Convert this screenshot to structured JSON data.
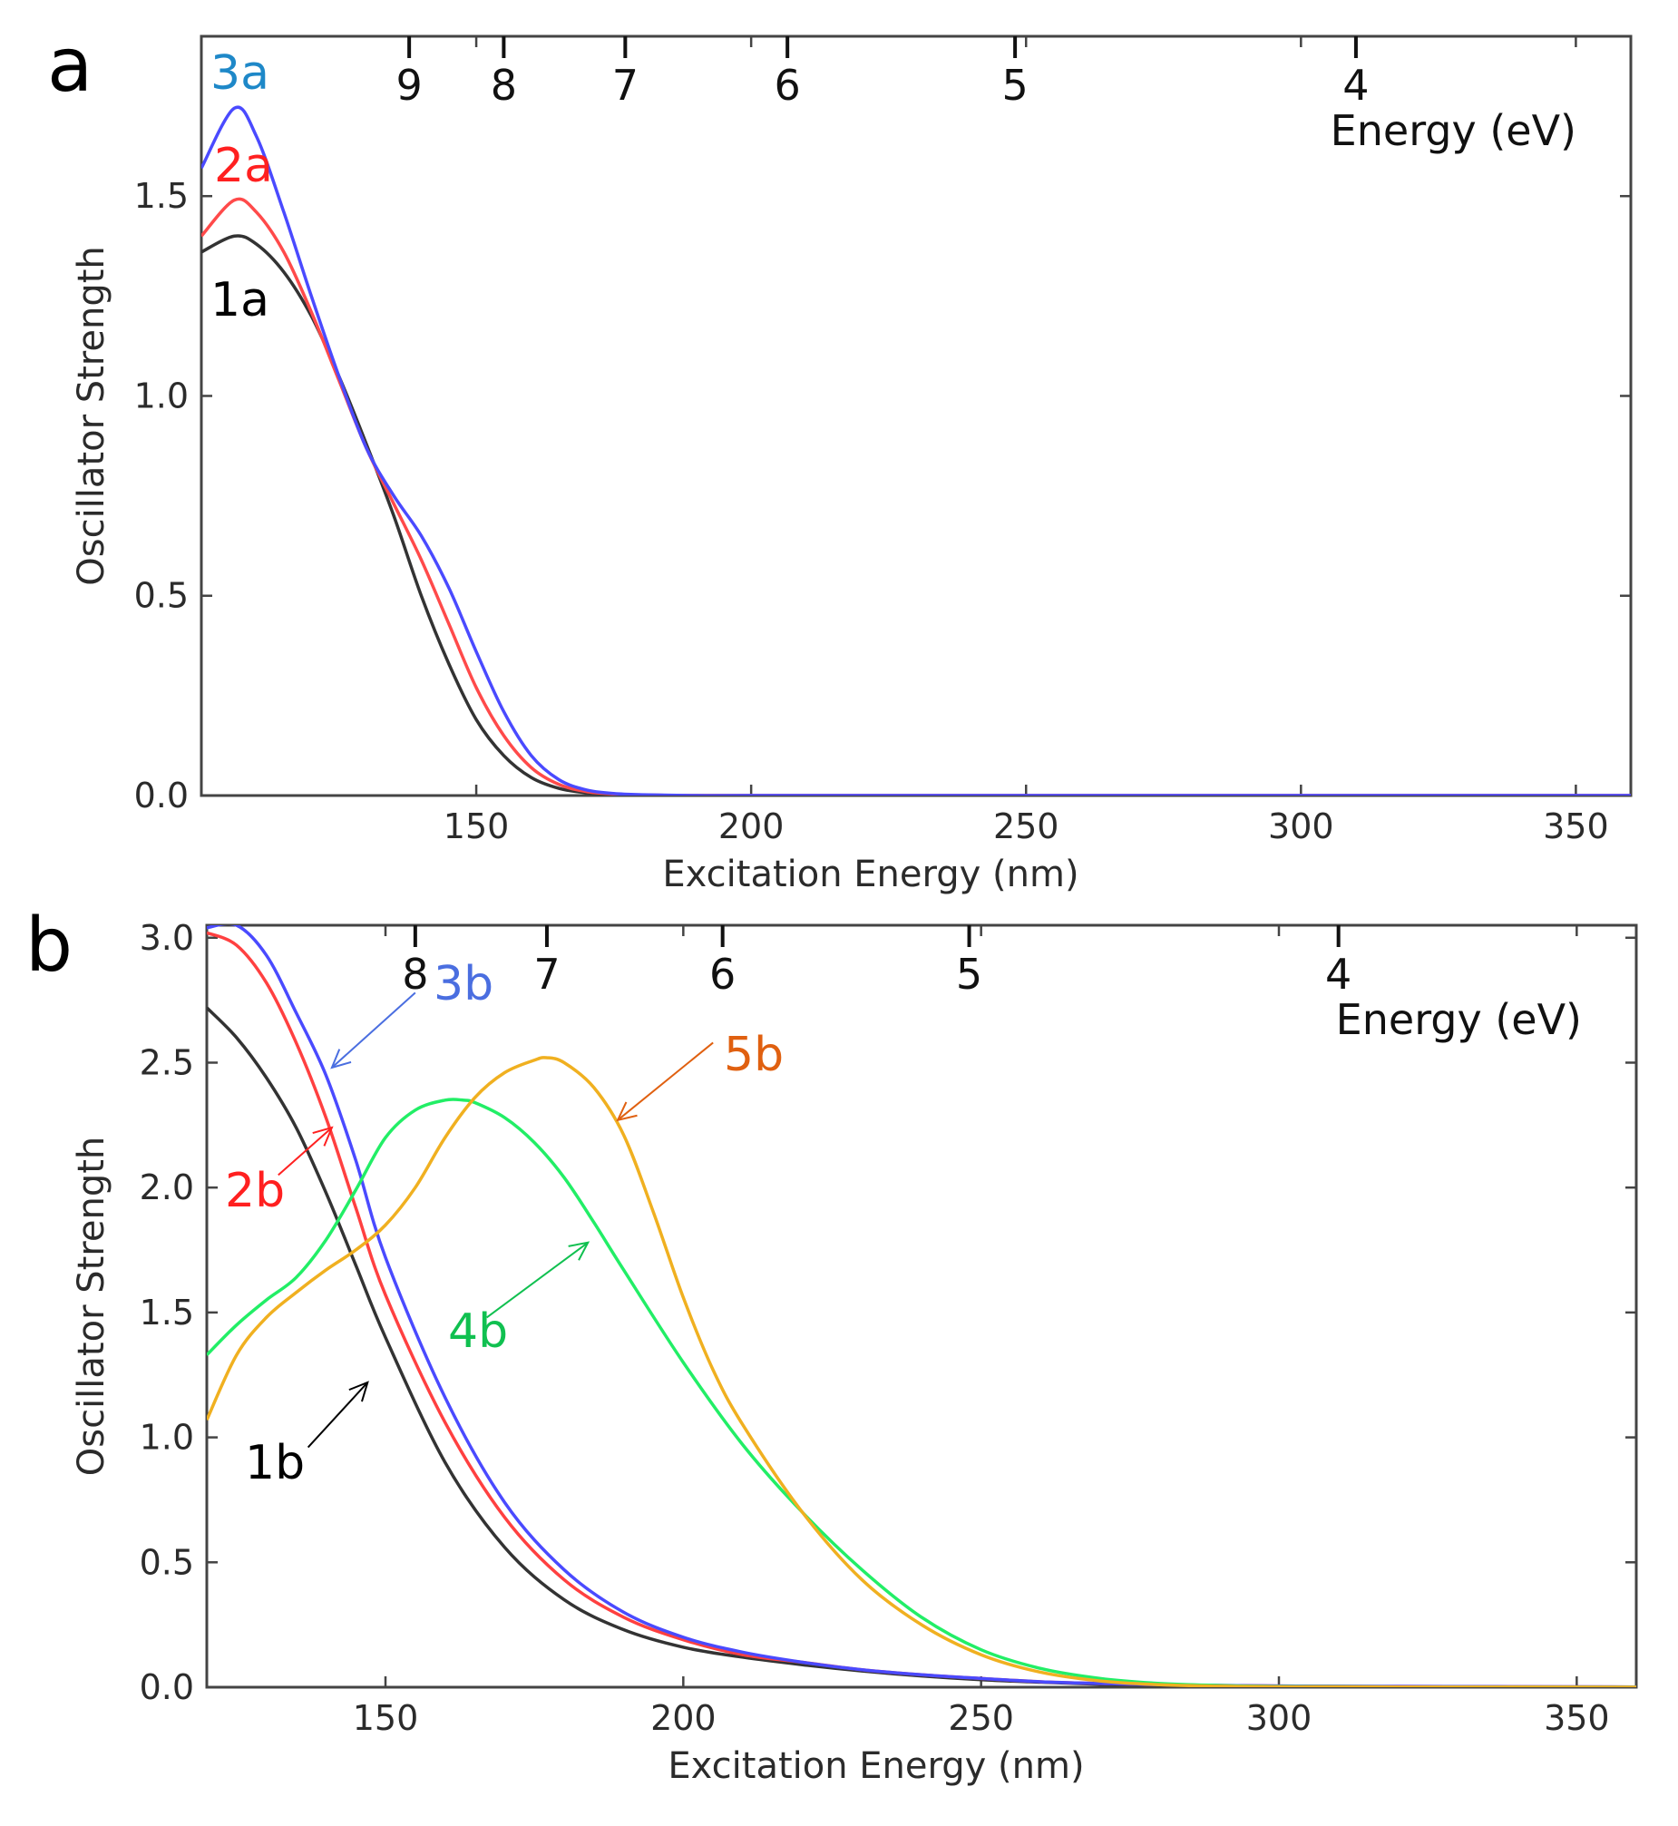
{
  "figure": {
    "panel_a_letter": "a",
    "panel_b_letter": "b"
  },
  "chart_data": [
    {
      "type": "line",
      "panel": "a",
      "xlabel": "Excitation Energy (nm)",
      "ylabel": "Oscillator Strength",
      "top_axis_label": "Energy (eV)",
      "xlim": [
        100,
        360
      ],
      "ylim": [
        0,
        1.9
      ],
      "xticks": [
        150,
        200,
        250,
        300,
        350
      ],
      "yticks": [
        0.0,
        0.5,
        1.0,
        1.5
      ],
      "ytick_labels": [
        "0.0",
        "0.5",
        "1.0",
        "1.5"
      ],
      "top_ticks": [
        {
          "label": "9",
          "nm": 137.8
        },
        {
          "label": "8",
          "nm": 155.0
        },
        {
          "label": "7",
          "nm": 177.1
        },
        {
          "label": "6",
          "nm": 206.6
        },
        {
          "label": "5",
          "nm": 248.0
        },
        {
          "label": "4",
          "nm": 310.0
        }
      ],
      "series": [
        {
          "name": "1a",
          "color": "#333333",
          "label_color": "#000000",
          "x": [
            100,
            106,
            110,
            115,
            120,
            125,
            130,
            135,
            140,
            145,
            150,
            155,
            160,
            165,
            170,
            175,
            180,
            190,
            200,
            250,
            300,
            360
          ],
          "y": [
            1.36,
            1.4,
            1.38,
            1.31,
            1.2,
            1.05,
            0.88,
            0.7,
            0.5,
            0.33,
            0.19,
            0.1,
            0.045,
            0.018,
            0.007,
            0.003,
            0.001,
            0,
            0,
            0,
            0,
            0
          ]
        },
        {
          "name": "2a",
          "color": "#ff4a4a",
          "label_color": "#ff2020",
          "x": [
            100,
            106,
            110,
            115,
            120,
            125,
            130,
            135,
            140,
            145,
            150,
            155,
            160,
            165,
            170,
            175,
            180,
            190,
            200,
            250,
            300,
            360
          ],
          "y": [
            1.4,
            1.49,
            1.46,
            1.36,
            1.21,
            1.04,
            0.87,
            0.73,
            0.59,
            0.43,
            0.27,
            0.15,
            0.07,
            0.028,
            0.01,
            0.004,
            0.001,
            0,
            0,
            0,
            0,
            0
          ]
        },
        {
          "name": "3a",
          "color": "#4a4aff",
          "label_color": "#1e88c8",
          "x": [
            100,
            106,
            110,
            115,
            120,
            125,
            130,
            135,
            140,
            145,
            150,
            155,
            160,
            165,
            170,
            175,
            180,
            190,
            200,
            250,
            300,
            360
          ],
          "y": [
            1.57,
            1.72,
            1.65,
            1.46,
            1.25,
            1.05,
            0.87,
            0.75,
            0.65,
            0.52,
            0.36,
            0.21,
            0.1,
            0.04,
            0.014,
            0.005,
            0.002,
            0,
            0,
            0,
            0,
            0
          ]
        }
      ]
    },
    {
      "type": "line",
      "panel": "b",
      "xlabel": "Excitation Energy (nm)",
      "ylabel": "Oscillator Strength",
      "top_axis_label": "Energy (eV)",
      "xlim": [
        120,
        360
      ],
      "ylim": [
        0,
        3.05
      ],
      "xticks": [
        150,
        200,
        250,
        300,
        350
      ],
      "yticks": [
        0.0,
        0.5,
        1.0,
        1.5,
        2.0,
        2.5,
        3.0
      ],
      "ytick_labels": [
        "0.0",
        "0.5",
        "1.0",
        "1.5",
        "2.0",
        "2.5",
        "3.0"
      ],
      "top_ticks": [
        {
          "label": "8",
          "nm": 155.0
        },
        {
          "label": "7",
          "nm": 177.1
        },
        {
          "label": "6",
          "nm": 206.6
        },
        {
          "label": "5",
          "nm": 248.0
        },
        {
          "label": "4",
          "nm": 310.0
        }
      ],
      "series": [
        {
          "name": "1b",
          "color": "#333333",
          "label_color": "#000000",
          "x": [
            120,
            125,
            130,
            135,
            140,
            145,
            150,
            160,
            170,
            180,
            190,
            200,
            210,
            220,
            230,
            240,
            250,
            260,
            270,
            280,
            300,
            320,
            360
          ],
          "y": [
            2.72,
            2.6,
            2.44,
            2.24,
            1.98,
            1.69,
            1.4,
            0.9,
            0.56,
            0.35,
            0.23,
            0.16,
            0.12,
            0.09,
            0.065,
            0.045,
            0.03,
            0.02,
            0.012,
            0.008,
            0.004,
            0.002,
            0.001
          ]
        },
        {
          "name": "2b",
          "color": "#ff4040",
          "label_color": "#ff2020",
          "x": [
            120,
            125,
            130,
            135,
            140,
            145,
            150,
            160,
            170,
            180,
            190,
            200,
            210,
            220,
            230,
            240,
            250,
            260,
            270,
            280,
            300,
            320,
            360
          ],
          "y": [
            3.02,
            2.97,
            2.82,
            2.58,
            2.28,
            1.92,
            1.57,
            1.06,
            0.68,
            0.43,
            0.28,
            0.19,
            0.13,
            0.1,
            0.07,
            0.05,
            0.035,
            0.022,
            0.015,
            0.01,
            0.005,
            0.003,
            0.001
          ]
        },
        {
          "name": "3b",
          "color": "#4a4aff",
          "label_color": "#4a6ee0",
          "x": [
            120,
            125,
            130,
            135,
            140,
            145,
            150,
            160,
            170,
            180,
            190,
            200,
            210,
            220,
            230,
            240,
            250,
            260,
            270,
            280,
            300,
            320,
            360
          ],
          "y": [
            3.04,
            3.05,
            2.93,
            2.7,
            2.45,
            2.11,
            1.72,
            1.16,
            0.74,
            0.47,
            0.3,
            0.2,
            0.14,
            0.1,
            0.07,
            0.05,
            0.035,
            0.022,
            0.015,
            0.01,
            0.005,
            0.003,
            0.001
          ]
        },
        {
          "name": "4b",
          "color": "#22ee66",
          "label_color": "#10c050",
          "x": [
            120,
            125,
            130,
            135,
            140,
            145,
            150,
            155,
            160,
            163,
            165,
            170,
            175,
            180,
            185,
            190,
            200,
            210,
            220,
            230,
            240,
            250,
            260,
            270,
            280,
            290,
            300,
            320,
            360
          ],
          "y": [
            1.33,
            1.45,
            1.55,
            1.64,
            1.79,
            1.99,
            2.2,
            2.31,
            2.35,
            2.35,
            2.34,
            2.28,
            2.18,
            2.04,
            1.86,
            1.67,
            1.3,
            0.97,
            0.7,
            0.47,
            0.28,
            0.15,
            0.075,
            0.035,
            0.015,
            0.007,
            0.003,
            0.001,
            0
          ]
        },
        {
          "name": "5b",
          "color": "#f0b020",
          "label_color": "#e06010",
          "x": [
            120,
            125,
            130,
            135,
            140,
            145,
            150,
            155,
            160,
            165,
            170,
            175,
            177,
            180,
            185,
            190,
            195,
            200,
            205,
            210,
            220,
            230,
            240,
            250,
            260,
            270,
            280,
            290,
            300,
            320,
            360
          ],
          "y": [
            1.07,
            1.33,
            1.48,
            1.58,
            1.67,
            1.75,
            1.85,
            2.0,
            2.2,
            2.36,
            2.46,
            2.51,
            2.52,
            2.5,
            2.4,
            2.21,
            1.9,
            1.56,
            1.27,
            1.05,
            0.7,
            0.43,
            0.25,
            0.13,
            0.06,
            0.025,
            0.01,
            0.004,
            0.002,
            0.001,
            0
          ]
        }
      ],
      "annotations": [
        {
          "text": "1b",
          "arrow_from": [
            137,
            0.96
          ],
          "arrow_to": [
            147,
            1.22
          ]
        },
        {
          "text": "2b",
          "arrow_from": [
            132,
            2.05
          ],
          "arrow_to": [
            141,
            2.24
          ]
        },
        {
          "text": "3b",
          "arrow_from": [
            155,
            2.78
          ],
          "arrow_to": [
            141,
            2.48
          ]
        },
        {
          "text": "4b",
          "arrow_from": [
            167,
            1.48
          ],
          "arrow_to": [
            184,
            1.78
          ]
        },
        {
          "text": "5b",
          "arrow_from": [
            205,
            2.58
          ],
          "arrow_to": [
            189,
            2.27
          ]
        }
      ]
    }
  ]
}
